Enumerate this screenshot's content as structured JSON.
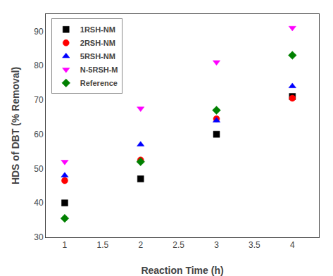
{
  "chart_data": {
    "type": "scatter",
    "xlabel": "Reaction Time (h)",
    "ylabel": "HDS of DBT (% Removal)",
    "series": [
      {
        "name": "1RSH-NM",
        "color": "black",
        "marker": "square",
        "x": [
          1,
          2,
          3,
          4
        ],
        "values": [
          40,
          47,
          60,
          71
        ]
      },
      {
        "name": "2RSH-NM",
        "color": "red",
        "marker": "circle",
        "x": [
          1,
          2,
          3,
          4
        ],
        "values": [
          46.5,
          52.5,
          64.5,
          70.5
        ]
      },
      {
        "name": "5RSH-NM",
        "color": "blue",
        "marker": "triangle-up",
        "x": [
          1,
          2,
          3,
          4
        ],
        "values": [
          48,
          57,
          64,
          74
        ]
      },
      {
        "name": "N-5RSH-M",
        "color": "#ff00ff",
        "marker": "triangle-down",
        "x": [
          1,
          2,
          3,
          4
        ],
        "values": [
          52,
          67.5,
          81,
          91
        ]
      },
      {
        "name": "Reference",
        "color": "#008000",
        "marker": "diamond",
        "x": [
          1,
          2,
          3,
          4
        ],
        "values": [
          35.5,
          52,
          67,
          83
        ]
      }
    ],
    "xlim": [
      0.75,
      4.35
    ],
    "ylim": [
      30,
      95
    ],
    "xticks": [
      1,
      1.5,
      2,
      2.5,
      3,
      3.5,
      4
    ],
    "yticks": [
      30,
      40,
      50,
      60,
      70,
      80,
      90
    ],
    "grid": false,
    "legend": "upper left"
  }
}
